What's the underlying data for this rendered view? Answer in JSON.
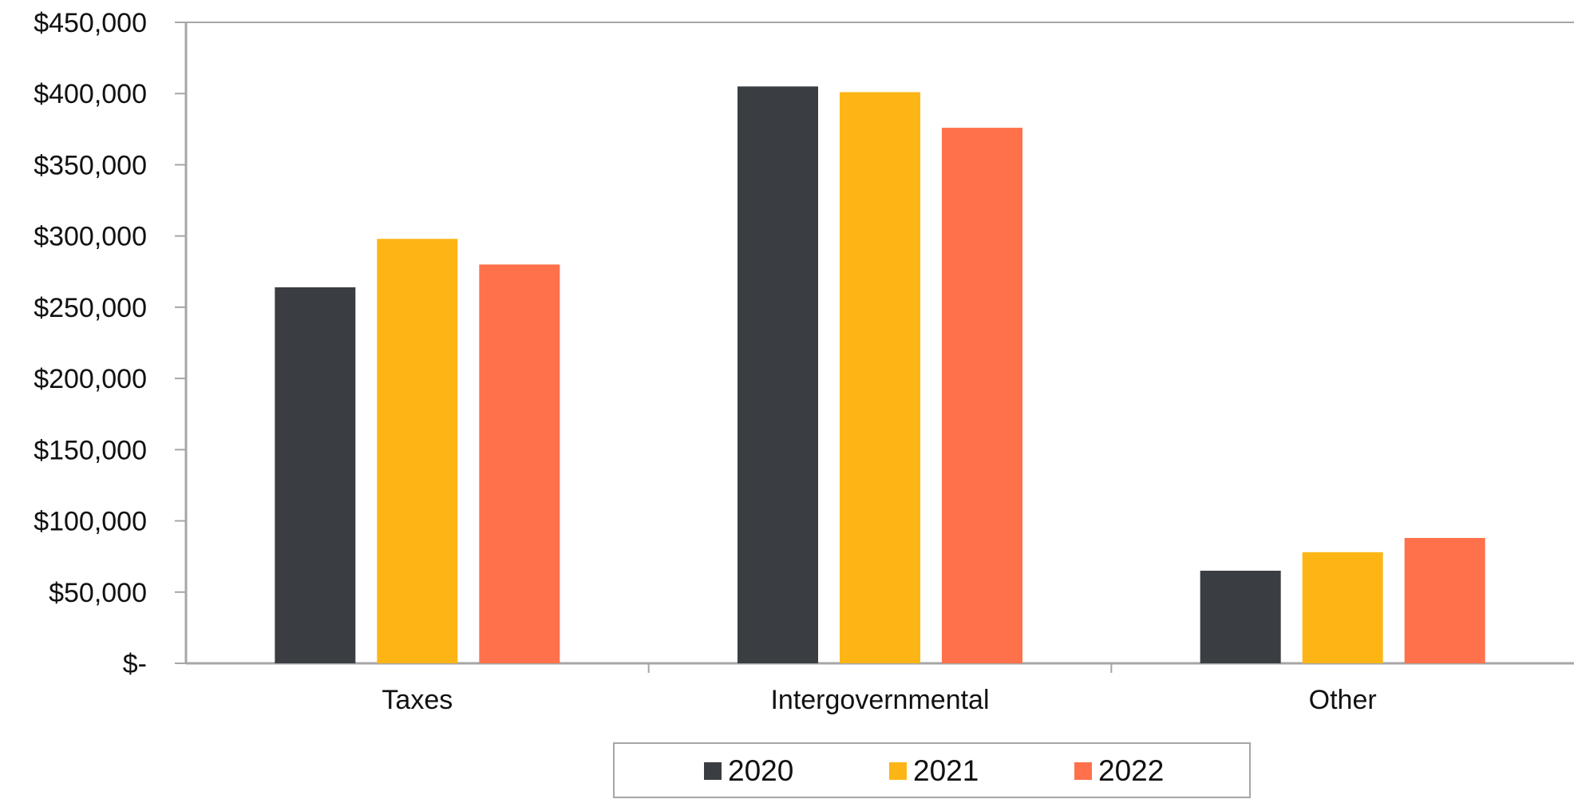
{
  "chart_data": {
    "type": "bar",
    "title": "",
    "xlabel": "",
    "ylabel": "",
    "categories": [
      "Taxes",
      "Intergovernmental",
      "Other"
    ],
    "series": [
      {
        "name": "2020",
        "color": "#3a3e42",
        "values": [
          264000,
          405000,
          65000
        ]
      },
      {
        "name": "2021",
        "color": "#fdb515",
        "values": [
          298000,
          401000,
          78000
        ]
      },
      {
        "name": "2022",
        "color": "#ff714a",
        "values": [
          280000,
          376000,
          88000
        ]
      }
    ],
    "ylim": [
      0,
      450000
    ],
    "yticks": [
      0,
      50000,
      100000,
      150000,
      200000,
      250000,
      300000,
      350000,
      400000,
      450000
    ],
    "ytick_labels": [
      "$-",
      "$50,000",
      "$100,000",
      "$150,000",
      "$200,000",
      "$250,000",
      "$300,000",
      "$350,000",
      "$400,000",
      "$450,000"
    ],
    "grid": false,
    "legend_position": "bottom"
  }
}
